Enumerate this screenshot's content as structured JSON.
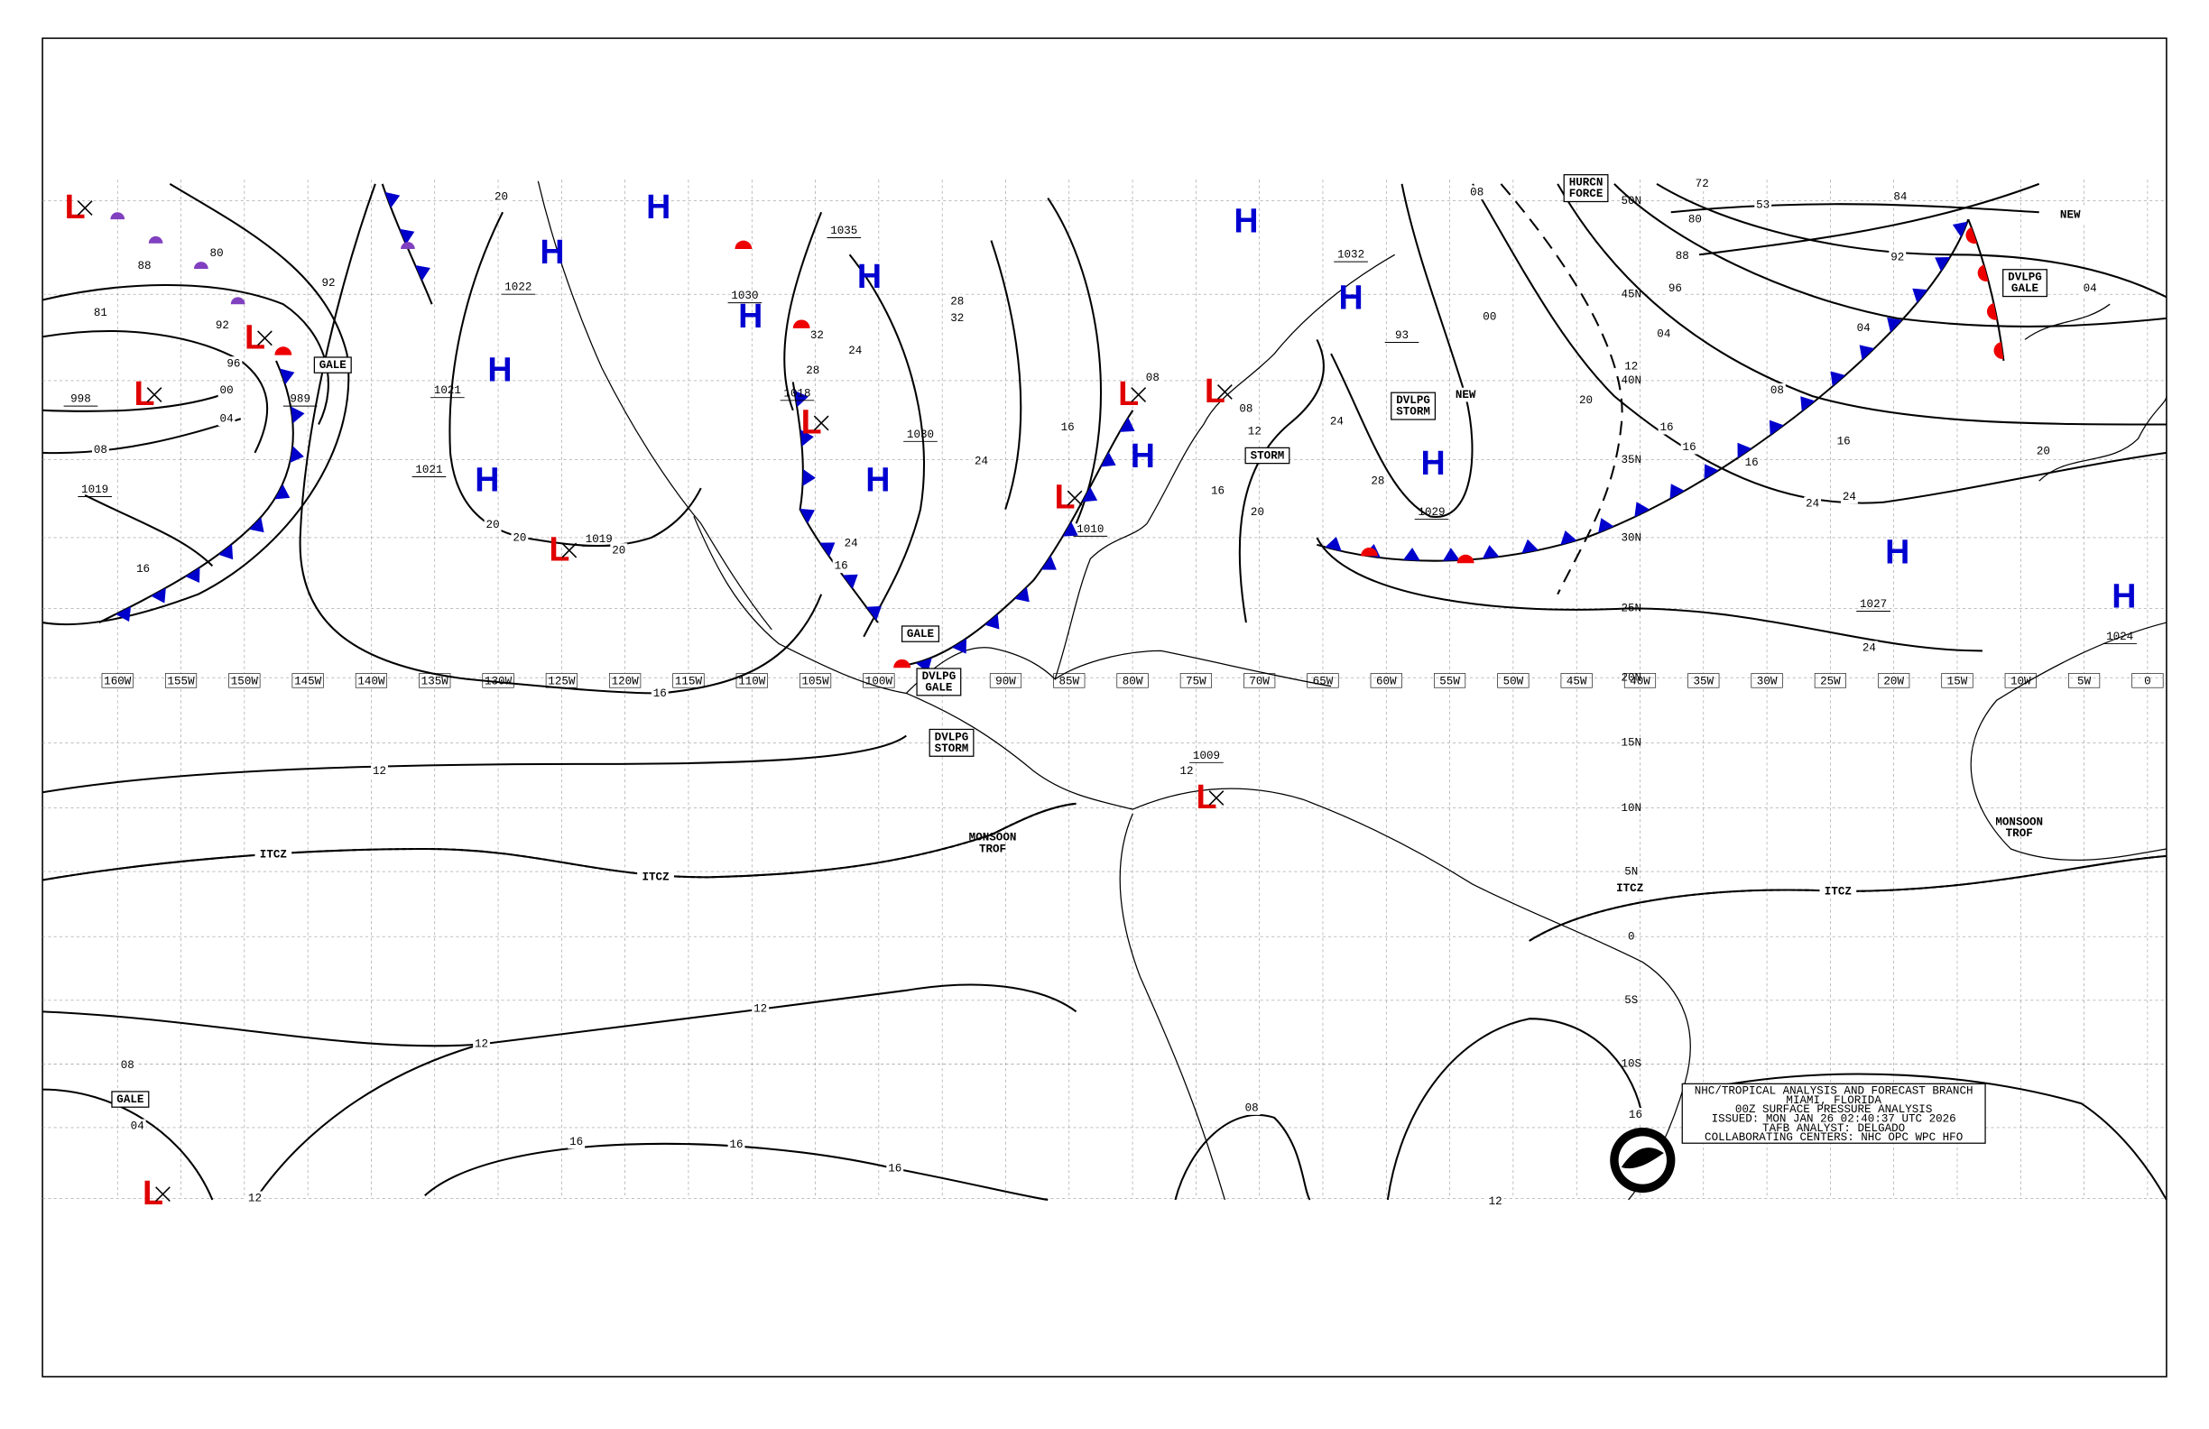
{
  "longitude_labels": [
    "160W",
    "155W",
    "150W",
    "145W",
    "140W",
    "135W",
    "130W",
    "125W",
    "120W",
    "115W",
    "110W",
    "105W",
    "100W",
    "95W",
    "90W",
    "85W",
    "80W",
    "75W",
    "70W",
    "65W",
    "60W",
    "55W",
    "50W",
    "45W",
    "40W",
    "35W",
    "30W",
    "25W",
    "20W",
    "15W",
    "10W",
    "5W",
    "0"
  ],
  "latitude_labels": [
    "50N",
    "45N",
    "40N",
    "35N",
    "30N",
    "25N",
    "20N",
    "15N",
    "10N",
    "5N",
    "0",
    "5S",
    "10S"
  ],
  "highs": [
    "H",
    "H",
    "H",
    "H",
    "H",
    "H",
    "H",
    "H",
    "H",
    "H",
    "H",
    "H",
    "H"
  ],
  "lows": [
    "L",
    "L",
    "L",
    "L",
    "L",
    "L",
    "L",
    "L",
    "L",
    "L"
  ],
  "center_pressures": [
    "1035",
    "1030",
    "1022",
    "1021",
    "1021",
    "1019",
    "989",
    "998",
    "1019",
    "1018",
    "1030",
    "1010",
    "1029",
    "1027",
    "1024",
    "1009",
    "1032",
    "93"
  ],
  "isobar_labels": [
    "88",
    "80",
    "92",
    "92",
    "96",
    "00",
    "04",
    "81",
    "08",
    "16",
    "20",
    "20",
    "20",
    "20",
    "16",
    "12",
    "12",
    "12",
    "16",
    "16",
    "16",
    "12",
    "08",
    "04",
    "08",
    "12",
    "16",
    "12",
    "72",
    "53",
    "80",
    "84",
    "88",
    "92",
    "96",
    "04",
    "04",
    "04",
    "08",
    "12",
    "16",
    "16",
    "16",
    "16",
    "20",
    "20",
    "24",
    "24",
    "24",
    "08",
    "00",
    "12",
    "16",
    "20",
    "24",
    "28",
    "24",
    "28",
    "32",
    "28",
    "32",
    "24",
    "16",
    "08",
    "08",
    "16",
    "24"
  ],
  "features": [
    [
      "GALE"
    ],
    [
      "GALE"
    ],
    [
      "GALE"
    ],
    [
      "STORM"
    ],
    [
      "DVLPG",
      "STORM"
    ],
    [
      "DVLPG",
      "STORM"
    ],
    [
      "DVLPG",
      "GALE"
    ],
    [
      "HURCN",
      "FORCE"
    ],
    [
      "NEW"
    ],
    [
      "NEW"
    ],
    [
      "ITCZ"
    ],
    [
      "ITCZ"
    ],
    [
      "ITCZ"
    ],
    [
      "ITCZ"
    ],
    [
      "MONSOON",
      "TROF"
    ],
    [
      "MONSOON",
      "TROF"
    ],
    [
      "DVLPG",
      "GALE"
    ]
  ],
  "title_block": [
    "NHC/TROPICAL ANALYSIS AND FORECAST BRANCH",
    "MIAMI, FLORIDA",
    "00Z SURFACE PRESSURE ANALYSIS",
    "ISSUED: MON JAN 26 02:40:37 UTC 2026",
    "TAFB ANALYST: DELGADO",
    "COLLABORATING CENTERS: NHC OPC WPC HFO"
  ]
}
